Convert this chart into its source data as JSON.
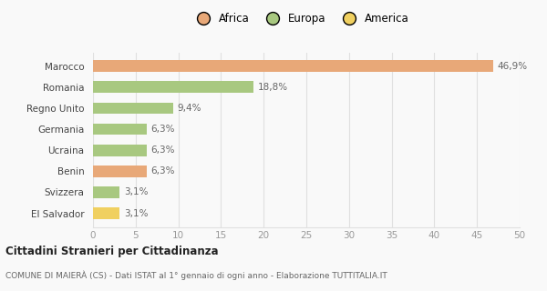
{
  "categories": [
    "El Salvador",
    "Svizzera",
    "Benin",
    "Ucraina",
    "Germania",
    "Regno Unito",
    "Romania",
    "Marocco"
  ],
  "values": [
    3.1,
    3.1,
    6.3,
    6.3,
    6.3,
    9.4,
    18.8,
    46.9
  ],
  "labels": [
    "3,1%",
    "3,1%",
    "6,3%",
    "6,3%",
    "6,3%",
    "9,4%",
    "18,8%",
    "46,9%"
  ],
  "colors": [
    "#f0d060",
    "#a8c880",
    "#e8a878",
    "#a8c880",
    "#a8c880",
    "#a8c880",
    "#a8c880",
    "#e8a878"
  ],
  "legend": [
    {
      "label": "Africa",
      "color": "#e8a878"
    },
    {
      "label": "Europa",
      "color": "#a8c880"
    },
    {
      "label": "America",
      "color": "#f0d060"
    }
  ],
  "xlim": [
    0,
    50
  ],
  "xticks": [
    0,
    5,
    10,
    15,
    20,
    25,
    30,
    35,
    40,
    45,
    50
  ],
  "title_main": "Cittadini Stranieri per Cittadinanza",
  "title_sub": "COMUNE DI MAIERÀ (CS) - Dati ISTAT al 1° gennaio di ogni anno - Elaborazione TUTTITALIA.IT",
  "bg_color": "#f9f9f9",
  "grid_color": "#e0e0e0"
}
